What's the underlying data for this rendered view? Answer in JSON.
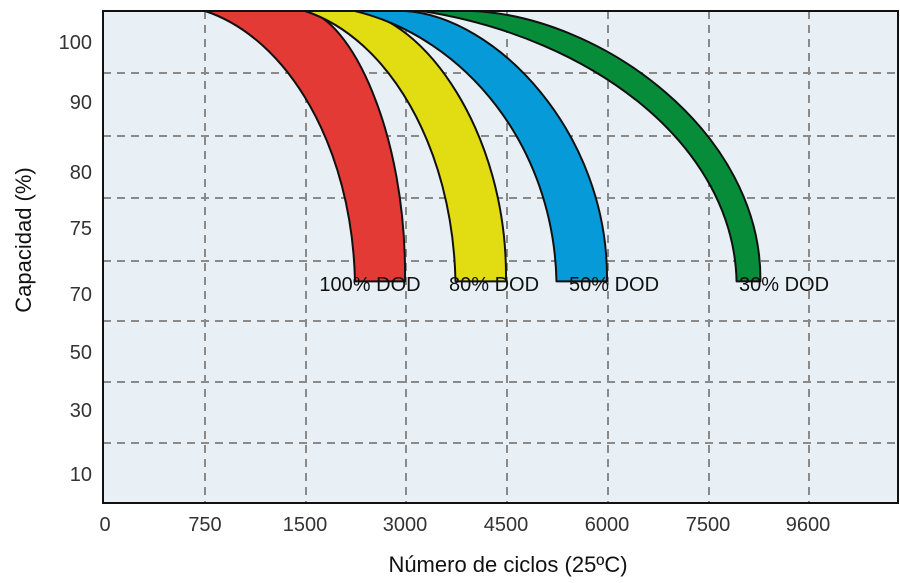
{
  "chart_data": {
    "type": "area",
    "title": "",
    "xlabel": "Número de ciclos (25ºC)",
    "ylabel": "Capacidad (%)",
    "x_ticks": [
      "0",
      "750",
      "1500",
      "3000",
      "4500",
      "6000",
      "7500",
      "9600"
    ],
    "y_ticks": [
      "100",
      "90",
      "80",
      "75",
      "70",
      "50",
      "30",
      "10"
    ],
    "grid": true,
    "background_color": "#e9f0f5",
    "series": [
      {
        "name": "100% DOD",
        "color": "#e43a35",
        "start_cycles": [
          750,
          1500
        ],
        "end_cycles": [
          2250,
          3000
        ],
        "end_capacity": 71.5
      },
      {
        "name": "80% DOD",
        "color": "#e2dc12",
        "start_cycles": [
          1500,
          2250
        ],
        "end_cycles": [
          3750,
          4500
        ],
        "end_capacity": 71.5
      },
      {
        "name": "50% DOD",
        "color": "#079ad9",
        "start_cycles": [
          2250,
          3000
        ],
        "end_cycles": [
          5250,
          6000
        ],
        "end_capacity": 71.5
      },
      {
        "name": "30% DOD",
        "color": "#078d3a",
        "start_cycles": [
          3250,
          4000
        ],
        "end_cycles": [
          8100,
          8600
        ],
        "end_capacity": 71.5
      }
    ]
  }
}
